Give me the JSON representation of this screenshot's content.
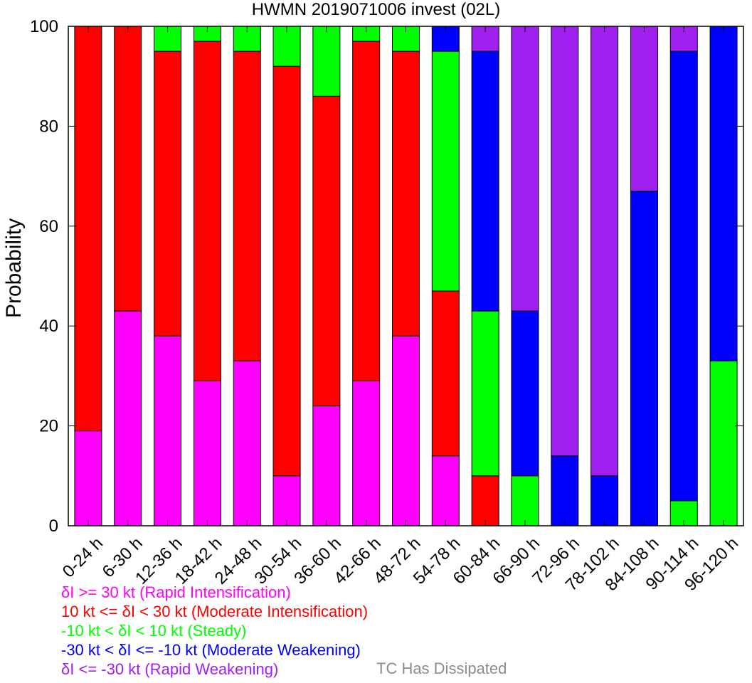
{
  "chart_data": {
    "type": "bar",
    "stacked": true,
    "title": "HWMN 2019071006 invest (02L)",
    "ylabel": "Probability",
    "ylim": [
      0,
      100
    ],
    "yticks": [
      0,
      20,
      40,
      60,
      80,
      100
    ],
    "categories": [
      "0-24 h",
      "6-30 h",
      "12-36 h",
      "18-42 h",
      "24-48 h",
      "30-54 h",
      "36-60 h",
      "42-66 h",
      "48-72 h",
      "54-78 h",
      "60-84 h",
      "66-90 h",
      "72-96 h",
      "78-102 h",
      "84-108 h",
      "90-114 h",
      "96-120 h"
    ],
    "series": [
      {
        "name": "δI >= 30 kt (Rapid Intensification)",
        "color": "#ff00ff",
        "values": [
          19,
          43,
          38,
          29,
          33,
          10,
          24,
          29,
          38,
          14,
          0,
          0,
          0,
          0,
          0,
          0,
          0
        ]
      },
      {
        "name": "10 kt <= δI < 30 kt (Moderate Intensification)",
        "color": "#ff0000",
        "values": [
          81,
          57,
          57,
          68,
          62,
          82,
          62,
          68,
          57,
          33,
          10,
          0,
          0,
          0,
          0,
          0,
          0
        ]
      },
      {
        "name": "-10 kt < δI < 10 kt (Steady)",
        "color": "#00ff00",
        "values": [
          0,
          0,
          5,
          3,
          5,
          8,
          14,
          3,
          5,
          48,
          33,
          10,
          0,
          0,
          0,
          5,
          33
        ]
      },
      {
        "name": "-30 kt < δI <= -10 kt (Moderate Weakening)",
        "color": "#0000ff",
        "values": [
          0,
          0,
          0,
          0,
          0,
          0,
          0,
          0,
          0,
          5,
          52,
          33,
          14,
          10,
          67,
          90,
          67
        ]
      },
      {
        "name": "δI <= -30 kt (Rapid Weakening)",
        "color": "#a020f0",
        "values": [
          0,
          0,
          0,
          0,
          0,
          0,
          0,
          0,
          0,
          0,
          5,
          57,
          86,
          90,
          33,
          5,
          0
        ]
      }
    ],
    "dissipated_label": "TC Has Dissipated",
    "dissipated_color": "#8c8c8c"
  }
}
